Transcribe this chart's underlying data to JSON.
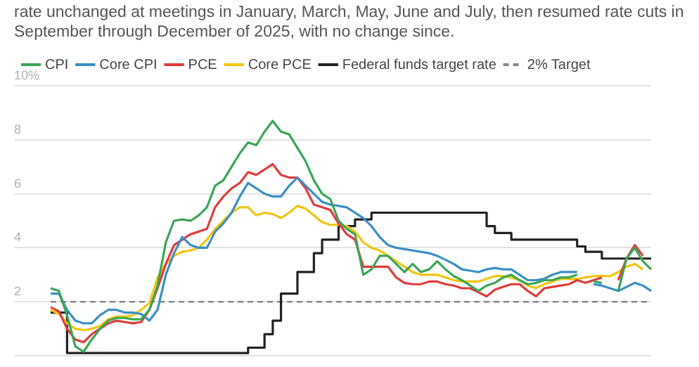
{
  "chart_data": {
    "type": "line",
    "subtitle": "rate unchanged at meetings in January, March, May, June and July, then resumed rate cuts in September through December of 2025, with no change since.",
    "categories": [
      null,
      null,
      null,
      null,
      null,
      null,
      null,
      null,
      null,
      null,
      null,
      null,
      null,
      null,
      null,
      null,
      null,
      null,
      null,
      null,
      null,
      null,
      null,
      null,
      null,
      null,
      null,
      null,
      null,
      null,
      null,
      null,
      null,
      null,
      null,
      null,
      null,
      null,
      null,
      null,
      null,
      null,
      null,
      null,
      null,
      null,
      null,
      null,
      null,
      null,
      null,
      null,
      null,
      null,
      null,
      null,
      null,
      null,
      null,
      null,
      null,
      null,
      null,
      null,
      null,
      null,
      null,
      null,
      null,
      null,
      null,
      null,
      null,
      null
    ],
    "series": [
      {
        "name": "CPI",
        "type": "line",
        "color": "#3aa655",
        "values": [
          2.5,
          2.4,
          1.5,
          0.35,
          0.15,
          0.6,
          1.0,
          1.3,
          1.4,
          1.4,
          1.35,
          1.35,
          1.7,
          2.6,
          4.2,
          5.0,
          5.05,
          5.0,
          5.2,
          5.5,
          6.3,
          6.5,
          7.0,
          7.5,
          7.9,
          7.8,
          8.3,
          8.7,
          8.3,
          8.2,
          7.7,
          7.2,
          6.5,
          6.0,
          5.8,
          5.0,
          4.7,
          4.5,
          3.0,
          3.2,
          3.7,
          3.7,
          3.4,
          3.1,
          3.4,
          3.1,
          3.2,
          3.5,
          3.2,
          2.95,
          2.8,
          2.6,
          2.4,
          2.6,
          2.7,
          2.9,
          3.0,
          2.8,
          2.65,
          2.7,
          2.8,
          2.8,
          2.9,
          2.9,
          3.0,
          null,
          2.75,
          2.7,
          null,
          2.4,
          3.6,
          4.0,
          3.5,
          3.2
        ]
      },
      {
        "name": "Core CPI",
        "type": "line",
        "color": "#3b8fc4",
        "values": [
          2.3,
          2.3,
          1.7,
          1.3,
          1.2,
          1.2,
          1.5,
          1.7,
          1.7,
          1.6,
          1.6,
          1.55,
          1.3,
          1.7,
          3.0,
          3.8,
          4.4,
          4.1,
          4.0,
          4.0,
          4.6,
          4.9,
          5.3,
          5.9,
          6.4,
          6.2,
          6.0,
          5.9,
          5.9,
          6.3,
          6.6,
          6.3,
          6.0,
          5.7,
          5.6,
          5.55,
          5.5,
          5.3,
          5.1,
          4.8,
          4.4,
          4.1,
          4.0,
          3.95,
          3.9,
          3.85,
          3.8,
          3.7,
          3.55,
          3.4,
          3.2,
          3.15,
          3.1,
          3.2,
          3.25,
          3.2,
          3.2,
          3.0,
          2.8,
          2.8,
          2.85,
          3.0,
          3.1,
          3.1,
          3.1,
          null,
          2.65,
          2.6,
          2.5,
          2.4,
          2.55,
          2.7,
          2.6,
          2.4
        ]
      },
      {
        "name": "PCE",
        "type": "line",
        "color": "#e03c3c",
        "values": [
          1.8,
          1.65,
          1.0,
          0.6,
          0.5,
          0.8,
          1.0,
          1.2,
          1.3,
          1.25,
          1.2,
          1.25,
          1.7,
          2.5,
          3.4,
          4.1,
          4.3,
          4.5,
          4.6,
          4.7,
          5.5,
          5.9,
          6.2,
          6.4,
          6.8,
          6.7,
          6.9,
          7.1,
          6.7,
          6.6,
          6.6,
          6.2,
          5.6,
          5.5,
          5.4,
          4.9,
          4.5,
          4.3,
          3.3,
          3.3,
          3.3,
          3.3,
          2.9,
          2.7,
          2.65,
          2.65,
          2.75,
          2.75,
          2.65,
          2.6,
          2.5,
          2.5,
          2.35,
          2.2,
          2.45,
          2.55,
          2.65,
          2.65,
          2.4,
          2.2,
          2.5,
          2.55,
          2.6,
          2.65,
          2.8,
          2.7,
          2.8,
          2.9,
          null,
          2.8,
          3.6,
          4.1,
          3.7,
          null
        ]
      },
      {
        "name": "Core PCE",
        "type": "line",
        "color": "#f2c511",
        "values": [
          1.7,
          1.55,
          1.2,
          1.0,
          0.95,
          1.0,
          1.1,
          1.35,
          1.45,
          1.45,
          1.5,
          1.7,
          1.95,
          2.9,
          3.4,
          3.7,
          3.85,
          3.9,
          4.0,
          4.3,
          4.7,
          5.0,
          5.3,
          5.5,
          5.5,
          5.2,
          5.3,
          5.25,
          5.1,
          5.3,
          5.55,
          5.45,
          5.2,
          4.95,
          4.85,
          4.85,
          4.8,
          4.6,
          4.2,
          4.0,
          3.9,
          3.7,
          3.5,
          3.3,
          3.1,
          3.0,
          3.0,
          3.0,
          2.9,
          2.8,
          2.75,
          2.75,
          2.75,
          2.85,
          2.95,
          2.95,
          2.9,
          2.8,
          2.6,
          2.5,
          2.65,
          2.75,
          2.85,
          2.85,
          2.85,
          2.9,
          2.95,
          2.95,
          2.95,
          3.1,
          3.3,
          3.4,
          3.2,
          null
        ]
      },
      {
        "name": "Federal funds target rate",
        "type": "step",
        "color": "#222222",
        "values": [
          1.6,
          1.6,
          0.1,
          0.1,
          0.1,
          0.1,
          0.1,
          0.1,
          0.1,
          0.1,
          0.1,
          0.1,
          0.1,
          0.1,
          0.1,
          0.1,
          0.1,
          0.1,
          0.1,
          0.1,
          0.1,
          0.1,
          0.1,
          0.1,
          0.3,
          0.3,
          0.8,
          1.3,
          2.3,
          2.3,
          3.1,
          3.1,
          3.8,
          4.3,
          4.3,
          4.8,
          4.8,
          5.05,
          5.05,
          5.3,
          5.3,
          5.3,
          5.3,
          5.3,
          5.3,
          5.3,
          5.3,
          5.3,
          5.3,
          5.3,
          5.3,
          5.3,
          5.3,
          4.8,
          4.55,
          4.55,
          4.3,
          4.3,
          4.3,
          4.3,
          4.3,
          4.3,
          4.3,
          4.3,
          4.05,
          3.85,
          3.85,
          3.6,
          3.6,
          3.6,
          3.6,
          3.6,
          3.6,
          3.6
        ]
      }
    ],
    "ref_lines": [
      {
        "axis": "y",
        "value": 2,
        "label": "2% Target",
        "color": "#888888",
        "line_style": "dashed"
      }
    ],
    "ylim": [
      0,
      10
    ],
    "yticks": [
      {
        "value": 0,
        "label": null
      },
      2,
      4,
      6,
      8,
      {
        "value": 10,
        "label": "10%"
      }
    ],
    "grid": "y",
    "legend": "top left"
  }
}
